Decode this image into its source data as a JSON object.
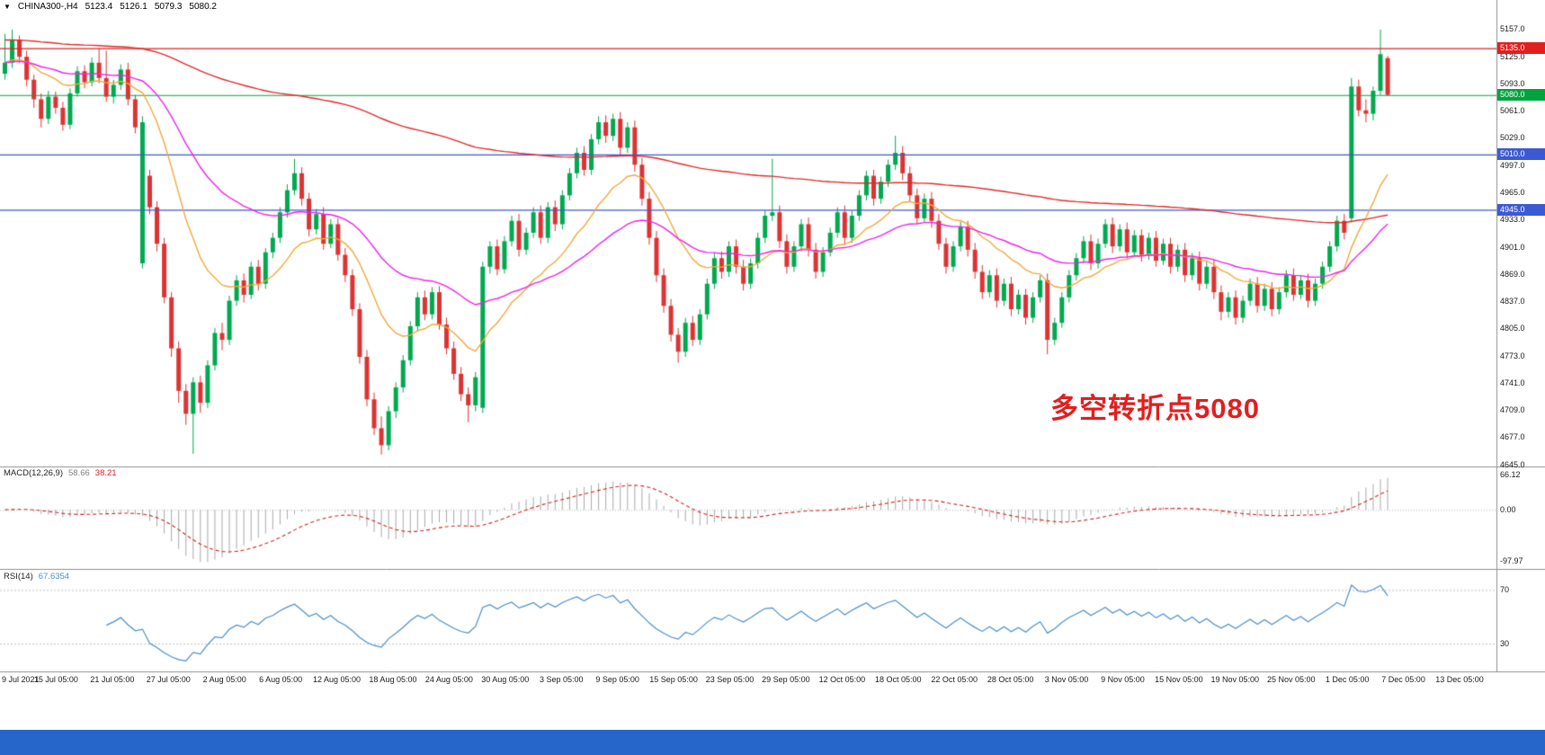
{
  "window": {
    "bg": "#ffffff",
    "bottom_bar_color": "#2666cb"
  },
  "infobar": {
    "symbol_icon": "▼",
    "symbol": "CHINA300-,H4",
    "open": "5123.4",
    "high": "5126.1",
    "low": "5079.3",
    "close": "5080.2"
  },
  "chart_data": {
    "type": "candlestick",
    "symbol": "CHINA300-",
    "timeframe": "H4",
    "colors": {
      "up": "#00a94f",
      "down": "#dd3333",
      "separator": "#909090",
      "axis_text": "#1a1a1a"
    },
    "price_axis": {
      "max": 5177,
      "min": 4643,
      "ticks": [
        5157,
        5125,
        5093,
        5061,
        5029,
        4997,
        4965,
        4933,
        4901,
        4869,
        4837,
        4805,
        4773,
        4741,
        4709,
        4677,
        4645
      ]
    },
    "levels": [
      {
        "value": 5135,
        "color": "#e01f1f",
        "label": "5135.0"
      },
      {
        "value": 5080,
        "color": "#00a33e",
        "label": "5080.0"
      },
      {
        "value": 5010,
        "color": "#3c59d1",
        "label": "5010.0"
      },
      {
        "value": 4945,
        "color": "#3c59d1",
        "label": "4945.0"
      }
    ],
    "moving_averages": [
      {
        "name": "fast",
        "period": 16,
        "color": "#f2a93b"
      },
      {
        "name": "mid",
        "period": 40,
        "color": "#ee22ee"
      },
      {
        "name": "slow",
        "period": 200,
        "color": "#e02a2a",
        "seed": 5145
      }
    ],
    "date_labels": [
      "9 Jul 2021",
      "15 Jul 05:00",
      "21 Jul 05:00",
      "27 Jul 05:00",
      "2 Aug 05:00",
      "6 Aug 05:00",
      "12 Aug 05:00",
      "18 Aug 05:00",
      "24 Aug 05:00",
      "30 Aug 05:00",
      "3 Sep 05:00",
      "9 Sep 05:00",
      "15 Sep 05:00",
      "23 Sep 05:00",
      "29 Sep 05:00",
      "12 Oct 05:00",
      "18 Oct 05:00",
      "22 Oct 05:00",
      "28 Oct 05:00",
      "3 Nov 05:00",
      "9 Nov 05:00",
      "15 Nov 05:00",
      "19 Nov 05:00",
      "25 Nov 05:00",
      "1 Dec 05:00",
      "7 Dec 05:00",
      "13 Dec 05:00"
    ],
    "annotation": {
      "text": "多空转折点5080",
      "color": "#e21e1e"
    },
    "macd": {
      "label": "MACD(12,26,9)",
      "value": "58.66",
      "signal": "38.21",
      "fast": 12,
      "slow": 26,
      "signal_period": 9,
      "axis": [
        "66.12",
        "0.00",
        "-97.97"
      ],
      "axis_values": [
        66.12,
        0,
        -97.97
      ],
      "scale_max": 80,
      "scale_min": -110,
      "hist_color": "#a9a9a9",
      "signal_color": "#d42222"
    },
    "rsi": {
      "label": "RSI(14)",
      "value": "67.6354",
      "period": 14,
      "levels": [
        70,
        30
      ],
      "scale_max": 85,
      "scale_min": 10,
      "color": "#4a8fd0",
      "level_color": "#c0c0c0"
    },
    "candles": [
      [
        5105,
        5152,
        5098,
        5118
      ],
      [
        5118,
        5157,
        5112,
        5145
      ],
      [
        5145,
        5150,
        5118,
        5125
      ],
      [
        5125,
        5132,
        5090,
        5098
      ],
      [
        5098,
        5104,
        5065,
        5075
      ],
      [
        5075,
        5082,
        5042,
        5052
      ],
      [
        5052,
        5085,
        5046,
        5078
      ],
      [
        5078,
        5084,
        5058,
        5065
      ],
      [
        5065,
        5072,
        5038,
        5045
      ],
      [
        5045,
        5088,
        5040,
        5082
      ],
      [
        5082,
        5114,
        5078,
        5108
      ],
      [
        5108,
        5115,
        5088,
        5095
      ],
      [
        5095,
        5124,
        5090,
        5118
      ],
      [
        5118,
        5135,
        5094,
        5100
      ],
      [
        5100,
        5132,
        5072,
        5078
      ],
      [
        5078,
        5098,
        5070,
        5092
      ],
      [
        5092,
        5116,
        5086,
        5110
      ],
      [
        5110,
        5118,
        5068,
        5075
      ],
      [
        5075,
        5080,
        5035,
        5042
      ],
      [
        4882,
        5055,
        4876,
        5048
      ],
      [
        4985,
        4992,
        4940,
        4948
      ],
      [
        4948,
        4955,
        4896,
        4905
      ],
      [
        4905,
        4912,
        4835,
        4842
      ],
      [
        4842,
        4848,
        4772,
        4782
      ],
      [
        4782,
        4790,
        4718,
        4732
      ],
      [
        4732,
        4740,
        4692,
        4705
      ],
      [
        4705,
        4748,
        4658,
        4742
      ],
      [
        4742,
        4750,
        4706,
        4718
      ],
      [
        4718,
        4768,
        4712,
        4762
      ],
      [
        4762,
        4806,
        4756,
        4800
      ],
      [
        4800,
        4812,
        4780,
        4792
      ],
      [
        4792,
        4844,
        4786,
        4838
      ],
      [
        4838,
        4868,
        4832,
        4862
      ],
      [
        4862,
        4870,
        4836,
        4845
      ],
      [
        4845,
        4884,
        4840,
        4878
      ],
      [
        4878,
        4886,
        4850,
        4858
      ],
      [
        4858,
        4900,
        4852,
        4895
      ],
      [
        4895,
        4918,
        4888,
        4912
      ],
      [
        4912,
        4948,
        4906,
        4942
      ],
      [
        4942,
        4975,
        4936,
        4968
      ],
      [
        4968,
        5005,
        4962,
        4988
      ],
      [
        4988,
        4995,
        4950,
        4958
      ],
      [
        4958,
        4965,
        4914,
        4922
      ],
      [
        4922,
        4946,
        4916,
        4940
      ],
      [
        4940,
        4948,
        4898,
        4905
      ],
      [
        4905,
        4934,
        4900,
        4928
      ],
      [
        4928,
        4935,
        4885,
        4892
      ],
      [
        4892,
        4900,
        4860,
        4868
      ],
      [
        4868,
        4875,
        4820,
        4828
      ],
      [
        4828,
        4835,
        4764,
        4772
      ],
      [
        4772,
        4780,
        4714,
        4722
      ],
      [
        4722,
        4730,
        4680,
        4688
      ],
      [
        4688,
        4702,
        4657,
        4668
      ],
      [
        4668,
        4714,
        4662,
        4708
      ],
      [
        4708,
        4742,
        4700,
        4736
      ],
      [
        4736,
        4774,
        4730,
        4768
      ],
      [
        4768,
        4814,
        4762,
        4808
      ],
      [
        4808,
        4848,
        4802,
        4842
      ],
      [
        4842,
        4850,
        4815,
        4822
      ],
      [
        4822,
        4854,
        4816,
        4848
      ],
      [
        4848,
        4855,
        4804,
        4810
      ],
      [
        4810,
        4818,
        4775,
        4782
      ],
      [
        4782,
        4790,
        4745,
        4752
      ],
      [
        4752,
        4760,
        4720,
        4728
      ],
      [
        4728,
        4736,
        4695,
        4715
      ],
      [
        4715,
        4754,
        4708,
        4748
      ],
      [
        4712,
        4884,
        4706,
        4878
      ],
      [
        4878,
        4908,
        4870,
        4902
      ],
      [
        4902,
        4910,
        4868,
        4875
      ],
      [
        4875,
        4914,
        4870,
        4908
      ],
      [
        4908,
        4938,
        4902,
        4932
      ],
      [
        4932,
        4940,
        4890,
        4898
      ],
      [
        4898,
        4924,
        4892,
        4918
      ],
      [
        4918,
        4948,
        4912,
        4942
      ],
      [
        4942,
        4950,
        4905,
        4912
      ],
      [
        4912,
        4954,
        4906,
        4948
      ],
      [
        4948,
        4956,
        4920,
        4928
      ],
      [
        4928,
        4968,
        4922,
        4962
      ],
      [
        4962,
        4994,
        4956,
        4988
      ],
      [
        4988,
        5018,
        4982,
        5012
      ],
      [
        5012,
        5020,
        4985,
        4992
      ],
      [
        4992,
        5034,
        4986,
        5028
      ],
      [
        5028,
        5055,
        5022,
        5048
      ],
      [
        5048,
        5056,
        5024,
        5032
      ],
      [
        5032,
        5058,
        5026,
        5052
      ],
      [
        5052,
        5060,
        5010,
        5018
      ],
      [
        5018,
        5048,
        5012,
        5042
      ],
      [
        5042,
        5050,
        4990,
        4998
      ],
      [
        4998,
        5006,
        4950,
        4958
      ],
      [
        4958,
        4966,
        4904,
        4912
      ],
      [
        4912,
        4920,
        4860,
        4868
      ],
      [
        4868,
        4876,
        4824,
        4832
      ],
      [
        4832,
        4840,
        4790,
        4798
      ],
      [
        4798,
        4806,
        4765,
        4778
      ],
      [
        4778,
        4818,
        4772,
        4812
      ],
      [
        4812,
        4820,
        4785,
        4792
      ],
      [
        4792,
        4828,
        4786,
        4822
      ],
      [
        4822,
        4864,
        4816,
        4858
      ],
      [
        4858,
        4894,
        4852,
        4888
      ],
      [
        4888,
        4896,
        4864,
        4872
      ],
      [
        4872,
        4908,
        4866,
        4902
      ],
      [
        4902,
        4910,
        4870,
        4878
      ],
      [
        4878,
        4886,
        4850,
        4858
      ],
      [
        4858,
        4888,
        4852,
        4882
      ],
      [
        4882,
        4918,
        4876,
        4912
      ],
      [
        4912,
        4944,
        4906,
        4938
      ],
      [
        4938,
        5005,
        4932,
        4942
      ],
      [
        4942,
        4950,
        4900,
        4908
      ],
      [
        4908,
        4916,
        4870,
        4878
      ],
      [
        4878,
        4908,
        4872,
        4902
      ],
      [
        4902,
        4934,
        4896,
        4928
      ],
      [
        4928,
        4936,
        4890,
        4898
      ],
      [
        4898,
        4906,
        4864,
        4872
      ],
      [
        4872,
        4901,
        4866,
        4895
      ],
      [
        4895,
        4924,
        4890,
        4918
      ],
      [
        4918,
        4948,
        4912,
        4942
      ],
      [
        4942,
        4950,
        4904,
        4912
      ],
      [
        4912,
        4944,
        4906,
        4938
      ],
      [
        4938,
        4968,
        4932,
        4962
      ],
      [
        4962,
        4991,
        4956,
        4985
      ],
      [
        4985,
        4992,
        4950,
        4958
      ],
      [
        4958,
        4984,
        4952,
        4978
      ],
      [
        4978,
        5004,
        4972,
        4998
      ],
      [
        4998,
        5032,
        4992,
        5012
      ],
      [
        5012,
        5020,
        4980,
        4988
      ],
      [
        4988,
        4996,
        4954,
        4962
      ],
      [
        4962,
        4970,
        4928,
        4935
      ],
      [
        4935,
        4964,
        4930,
        4958
      ],
      [
        4958,
        4966,
        4924,
        4932
      ],
      [
        4932,
        4940,
        4898,
        4905
      ],
      [
        4905,
        4912,
        4870,
        4878
      ],
      [
        4878,
        4908,
        4872,
        4902
      ],
      [
        4902,
        4931,
        4896,
        4925
      ],
      [
        4925,
        4932,
        4890,
        4898
      ],
      [
        4898,
        4906,
        4864,
        4872
      ],
      [
        4872,
        4880,
        4840,
        4848
      ],
      [
        4848,
        4874,
        4842,
        4868
      ],
      [
        4868,
        4876,
        4830,
        4838
      ],
      [
        4838,
        4864,
        4832,
        4858
      ],
      [
        4858,
        4866,
        4820,
        4828
      ],
      [
        4828,
        4851,
        4822,
        4845
      ],
      [
        4845,
        4852,
        4810,
        4818
      ],
      [
        4818,
        4848,
        4812,
        4842
      ],
      [
        4842,
        4868,
        4836,
        4862
      ],
      [
        4862,
        4870,
        4775,
        4792
      ],
      [
        4792,
        4818,
        4786,
        4812
      ],
      [
        4812,
        4848,
        4806,
        4842
      ],
      [
        4842,
        4874,
        4836,
        4868
      ],
      [
        4868,
        4894,
        4862,
        4888
      ],
      [
        4888,
        4914,
        4882,
        4908
      ],
      [
        4908,
        4916,
        4874,
        4882
      ],
      [
        4882,
        4911,
        4876,
        4905
      ],
      [
        4905,
        4934,
        4900,
        4928
      ],
      [
        4928,
        4936,
        4894,
        4902
      ],
      [
        4902,
        4928,
        4896,
        4922
      ],
      [
        4922,
        4930,
        4888,
        4895
      ],
      [
        4895,
        4921,
        4890,
        4915
      ],
      [
        4915,
        4922,
        4884,
        4892
      ],
      [
        4892,
        4918,
        4886,
        4912
      ],
      [
        4912,
        4920,
        4878,
        4885
      ],
      [
        4885,
        4911,
        4880,
        4905
      ],
      [
        4905,
        4912,
        4870,
        4878
      ],
      [
        4878,
        4904,
        4872,
        4898
      ],
      [
        4898,
        4906,
        4860,
        4868
      ],
      [
        4868,
        4894,
        4862,
        4888
      ],
      [
        4888,
        4896,
        4850,
        4858
      ],
      [
        4858,
        4884,
        4852,
        4878
      ],
      [
        4878,
        4886,
        4840,
        4848
      ],
      [
        4848,
        4856,
        4815,
        4825
      ],
      [
        4825,
        4848,
        4818,
        4842
      ],
      [
        4842,
        4850,
        4810,
        4818
      ],
      [
        4818,
        4844,
        4812,
        4838
      ],
      [
        4838,
        4864,
        4832,
        4858
      ],
      [
        4858,
        4866,
        4824,
        4832
      ],
      [
        4832,
        4858,
        4826,
        4852
      ],
      [
        4852,
        4860,
        4820,
        4828
      ],
      [
        4828,
        4854,
        4822,
        4848
      ],
      [
        4848,
        4874,
        4842,
        4868
      ],
      [
        4868,
        4876,
        4838,
        4845
      ],
      [
        4845,
        4868,
        4840,
        4862
      ],
      [
        4862,
        4870,
        4830,
        4838
      ],
      [
        4838,
        4864,
        4832,
        4858
      ],
      [
        4858,
        4884,
        4852,
        4878
      ],
      [
        4878,
        4908,
        4872,
        4902
      ],
      [
        4902,
        4938,
        4896,
        4932
      ],
      [
        4932,
        4940,
        4910,
        4918
      ],
      [
        4935,
        5100,
        4930,
        5090
      ],
      [
        5090,
        5098,
        5055,
        5062
      ],
      [
        5062,
        5075,
        5048,
        5058
      ],
      [
        5058,
        5090,
        5050,
        5085
      ],
      [
        5085,
        5157,
        5080,
        5128
      ],
      [
        5123.4,
        5126.1,
        5079.3,
        5080.2
      ]
    ]
  }
}
